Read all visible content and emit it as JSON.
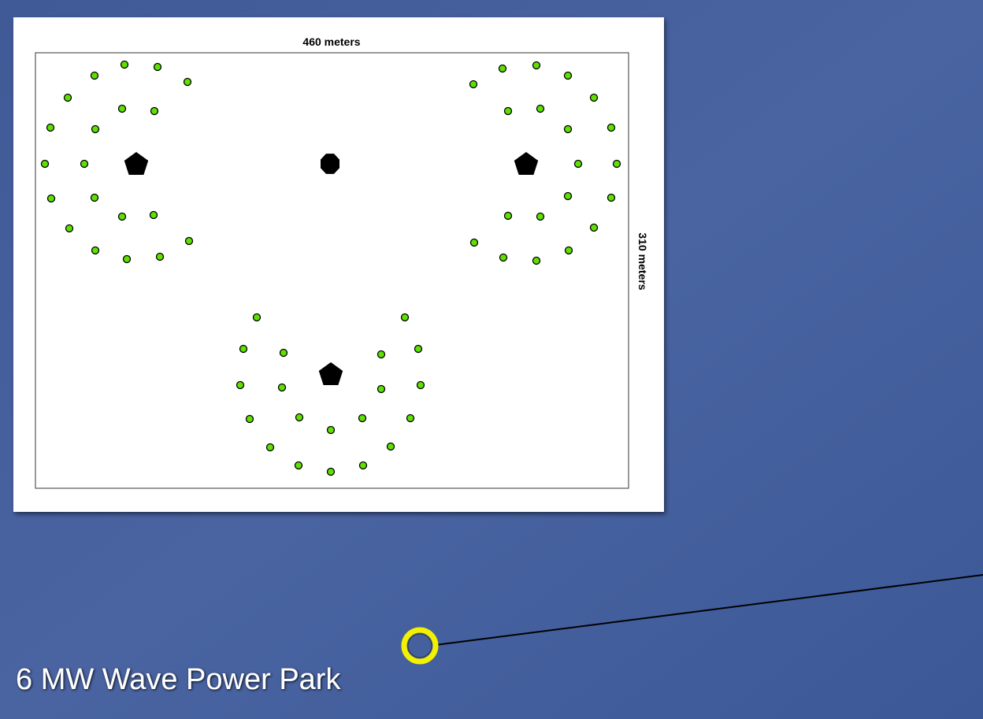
{
  "inset": {
    "width_label": "460 meters",
    "height_label": "310 meters"
  },
  "map": {
    "place_label": "6 MW Wave Power Park"
  }
}
